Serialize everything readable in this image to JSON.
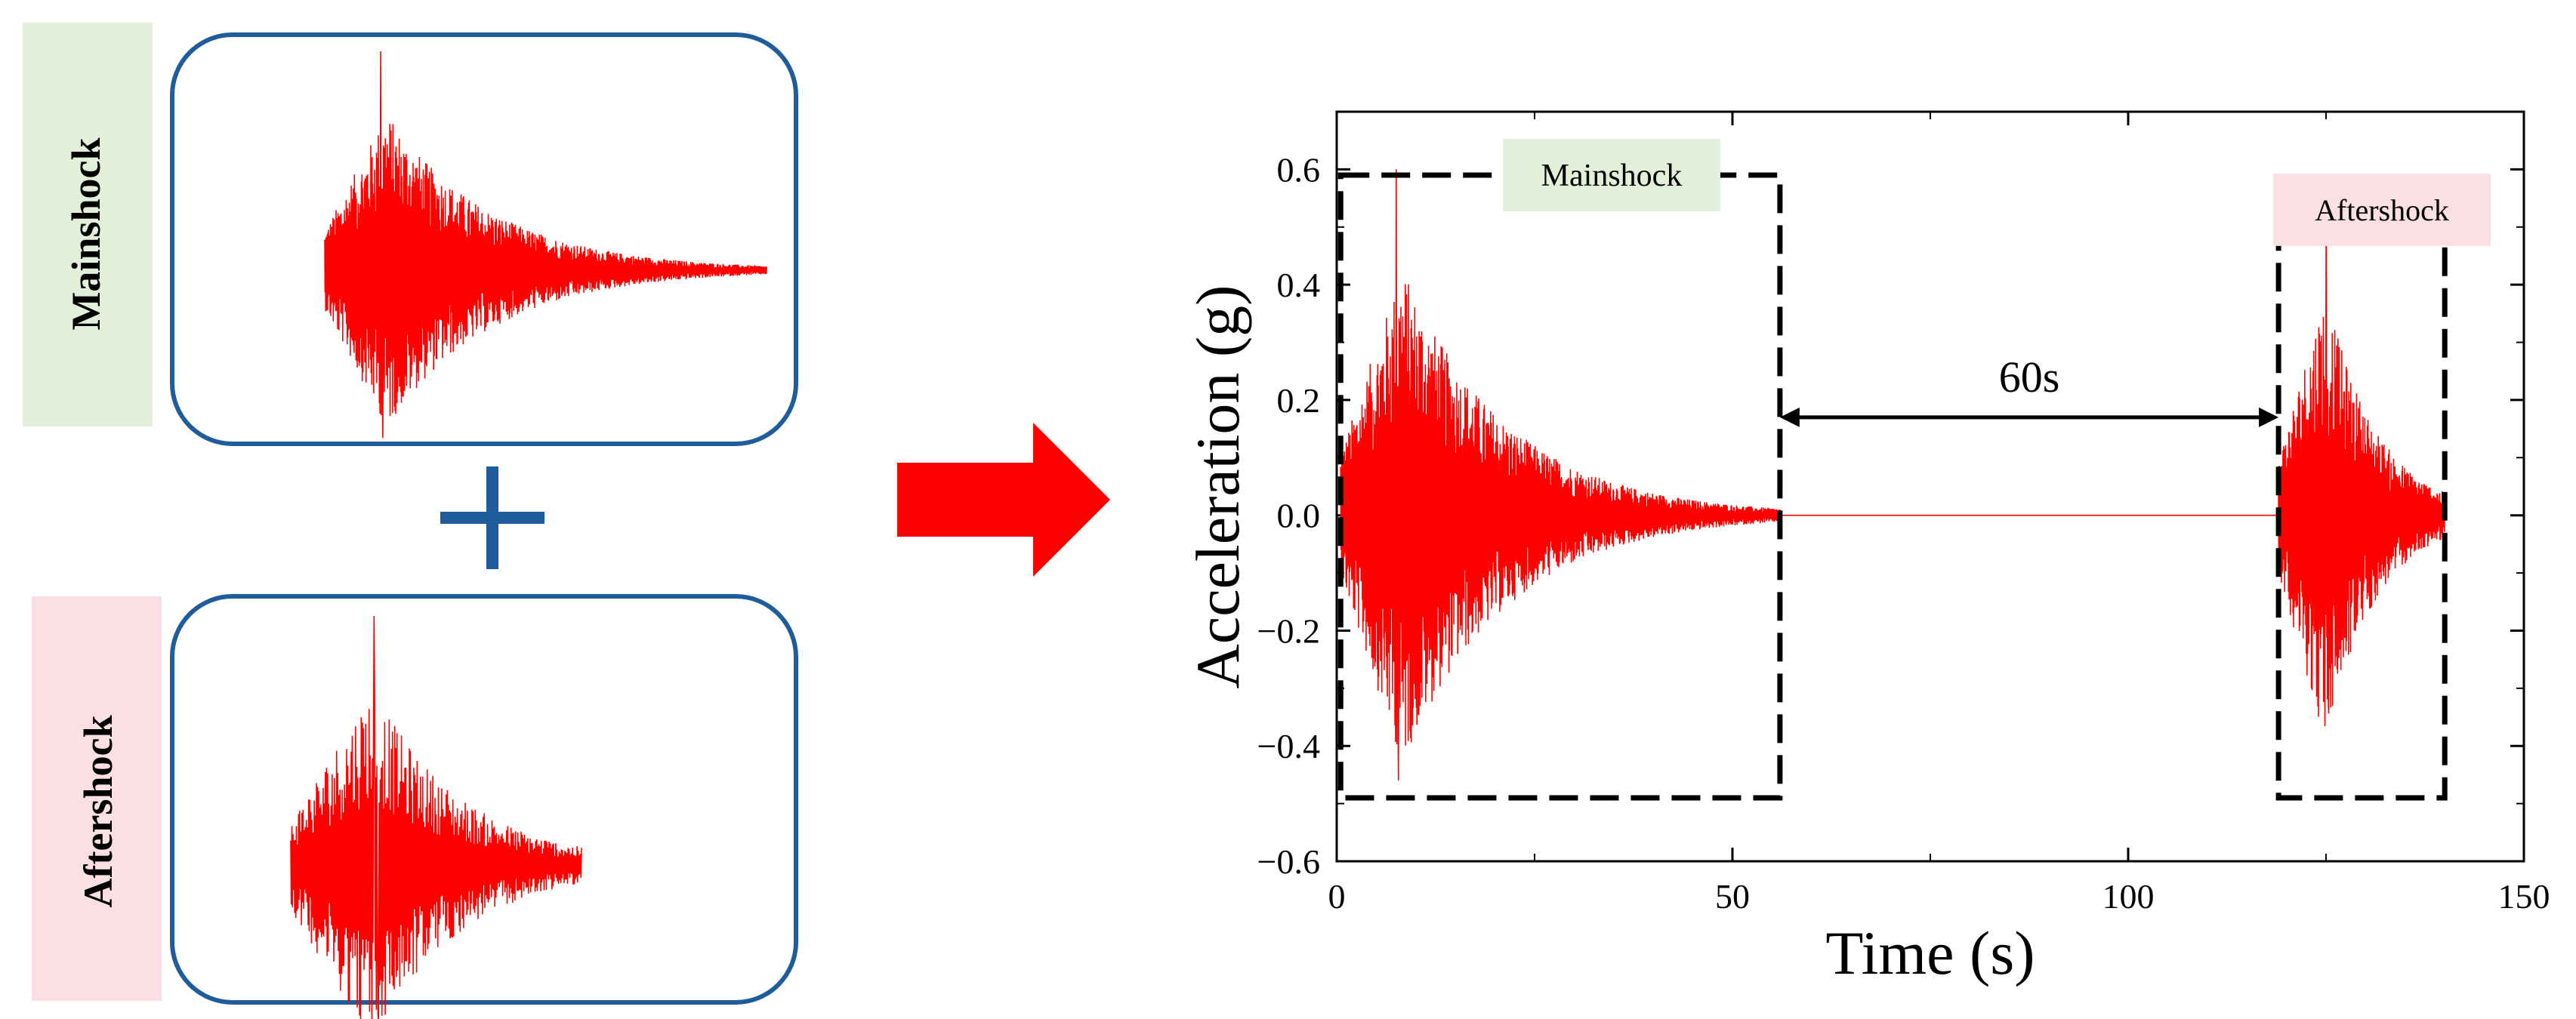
{
  "left_panel": {
    "mainshock_label": "Mainshock",
    "aftershock_label": "Aftershock",
    "plus_symbol": "+",
    "colors": {
      "mainshock_bg": "#e2f0d9",
      "aftershock_bg": "#fbe0e3",
      "frame": "#1f5c9c",
      "signal": "#ff0000",
      "arrow": "#ff0000"
    }
  },
  "chart_data": {
    "type": "line",
    "title": "",
    "xlabel": "Time (s)",
    "ylabel": "Acceleration (g)",
    "xlim": [
      0,
      150
    ],
    "ylim": [
      -0.6,
      0.7
    ],
    "xticks": [
      0,
      50,
      100,
      150
    ],
    "xtick_labels": [
      "0",
      "50",
      "100",
      "150"
    ],
    "yticks": [
      -0.6,
      -0.4,
      -0.2,
      0.0,
      0.2,
      0.4,
      0.6
    ],
    "ytick_labels": [
      "−0.6",
      "−0.4",
      "−0.2",
      "0.0",
      "0.2",
      "0.4",
      "0.6"
    ],
    "grid": false,
    "series": [
      {
        "color": "#ff0000",
        "mainshock": {
          "start": 0.5,
          "end": 56,
          "peak_time": 7.5,
          "peak": 0.6,
          "min_time": 7.8,
          "min": -0.46
        },
        "gap": {
          "start": 56,
          "end": 119,
          "value": 0.0
        },
        "aftershock": {
          "start": 119,
          "end": 140,
          "peak_time": 125,
          "peak": 0.55,
          "min_time": 125.3,
          "min": -0.33
        }
      }
    ],
    "annotations": {
      "mainshock_box": {
        "label": "Mainshock",
        "x0": 0.5,
        "x1": 56,
        "y0": -0.49,
        "y1": 0.59,
        "label_bg": "#e2f0d9"
      },
      "aftershock_box": {
        "label": "Aftershock",
        "x0": 119,
        "x1": 140,
        "y0": -0.49,
        "y1": 0.53,
        "label_bg": "#fbe0e3"
      },
      "interval": {
        "label": "60s",
        "x0": 56,
        "x1": 119,
        "y": 0.17
      }
    }
  }
}
